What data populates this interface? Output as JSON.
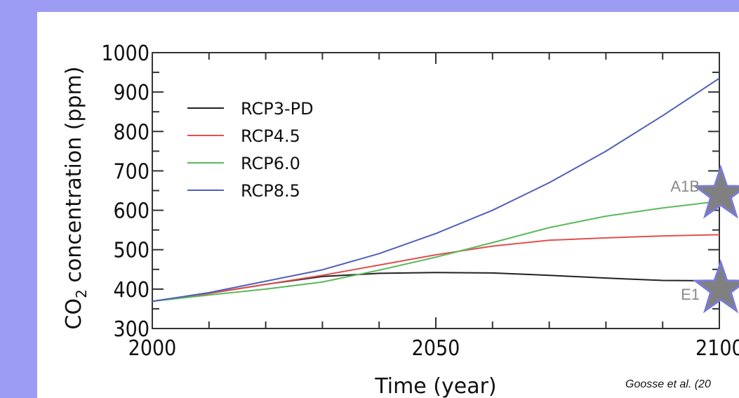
{
  "colors": {
    "background": "#9c9cf4",
    "panel": "#ffffff",
    "star_fill": "#808080",
    "star_stroke": "#7a7ad8"
  },
  "chart_data": {
    "type": "line",
    "ylabel_main": "CO",
    "ylabel_sub": "2",
    "ylabel_rest": " concentration (ppm)",
    "xlabel": "Time (year)",
    "xlim": [
      2000,
      2100
    ],
    "ylim": [
      300,
      1000
    ],
    "x_ticks": [
      2000,
      2050,
      2100
    ],
    "y_ticks": [
      300,
      400,
      500,
      600,
      700,
      800,
      900,
      1000
    ],
    "grid": false,
    "legend_position": "top-left",
    "x": [
      2000,
      2010,
      2020,
      2030,
      2040,
      2050,
      2060,
      2070,
      2080,
      2090,
      2100
    ],
    "series": [
      {
        "name": "RCP3-PD",
        "color": "#222222",
        "values": [
          369,
          389,
          412,
          432,
          440,
          442,
          441,
          435,
          428,
          422,
          421
        ]
      },
      {
        "name": "RCP4.5",
        "color": "#e05050",
        "values": [
          369,
          389,
          412,
          435,
          461,
          487,
          509,
          524,
          530,
          535,
          538
        ]
      },
      {
        "name": "RCP6.0",
        "color": "#5cb85c",
        "values": [
          369,
          385,
          400,
          418,
          448,
          481,
          518,
          556,
          585,
          606,
          623
        ]
      },
      {
        "name": "RCP8.5",
        "color": "#5060b8",
        "values": [
          369,
          391,
          420,
          449,
          490,
          541,
          600,
          670,
          750,
          840,
          935
        ]
      }
    ],
    "annotations": [
      {
        "label": "A1B",
        "x": 2100,
        "y": 640
      },
      {
        "label": "E1",
        "x": 2100,
        "y": 400
      }
    ],
    "credit": "Goosse et al. (20"
  }
}
